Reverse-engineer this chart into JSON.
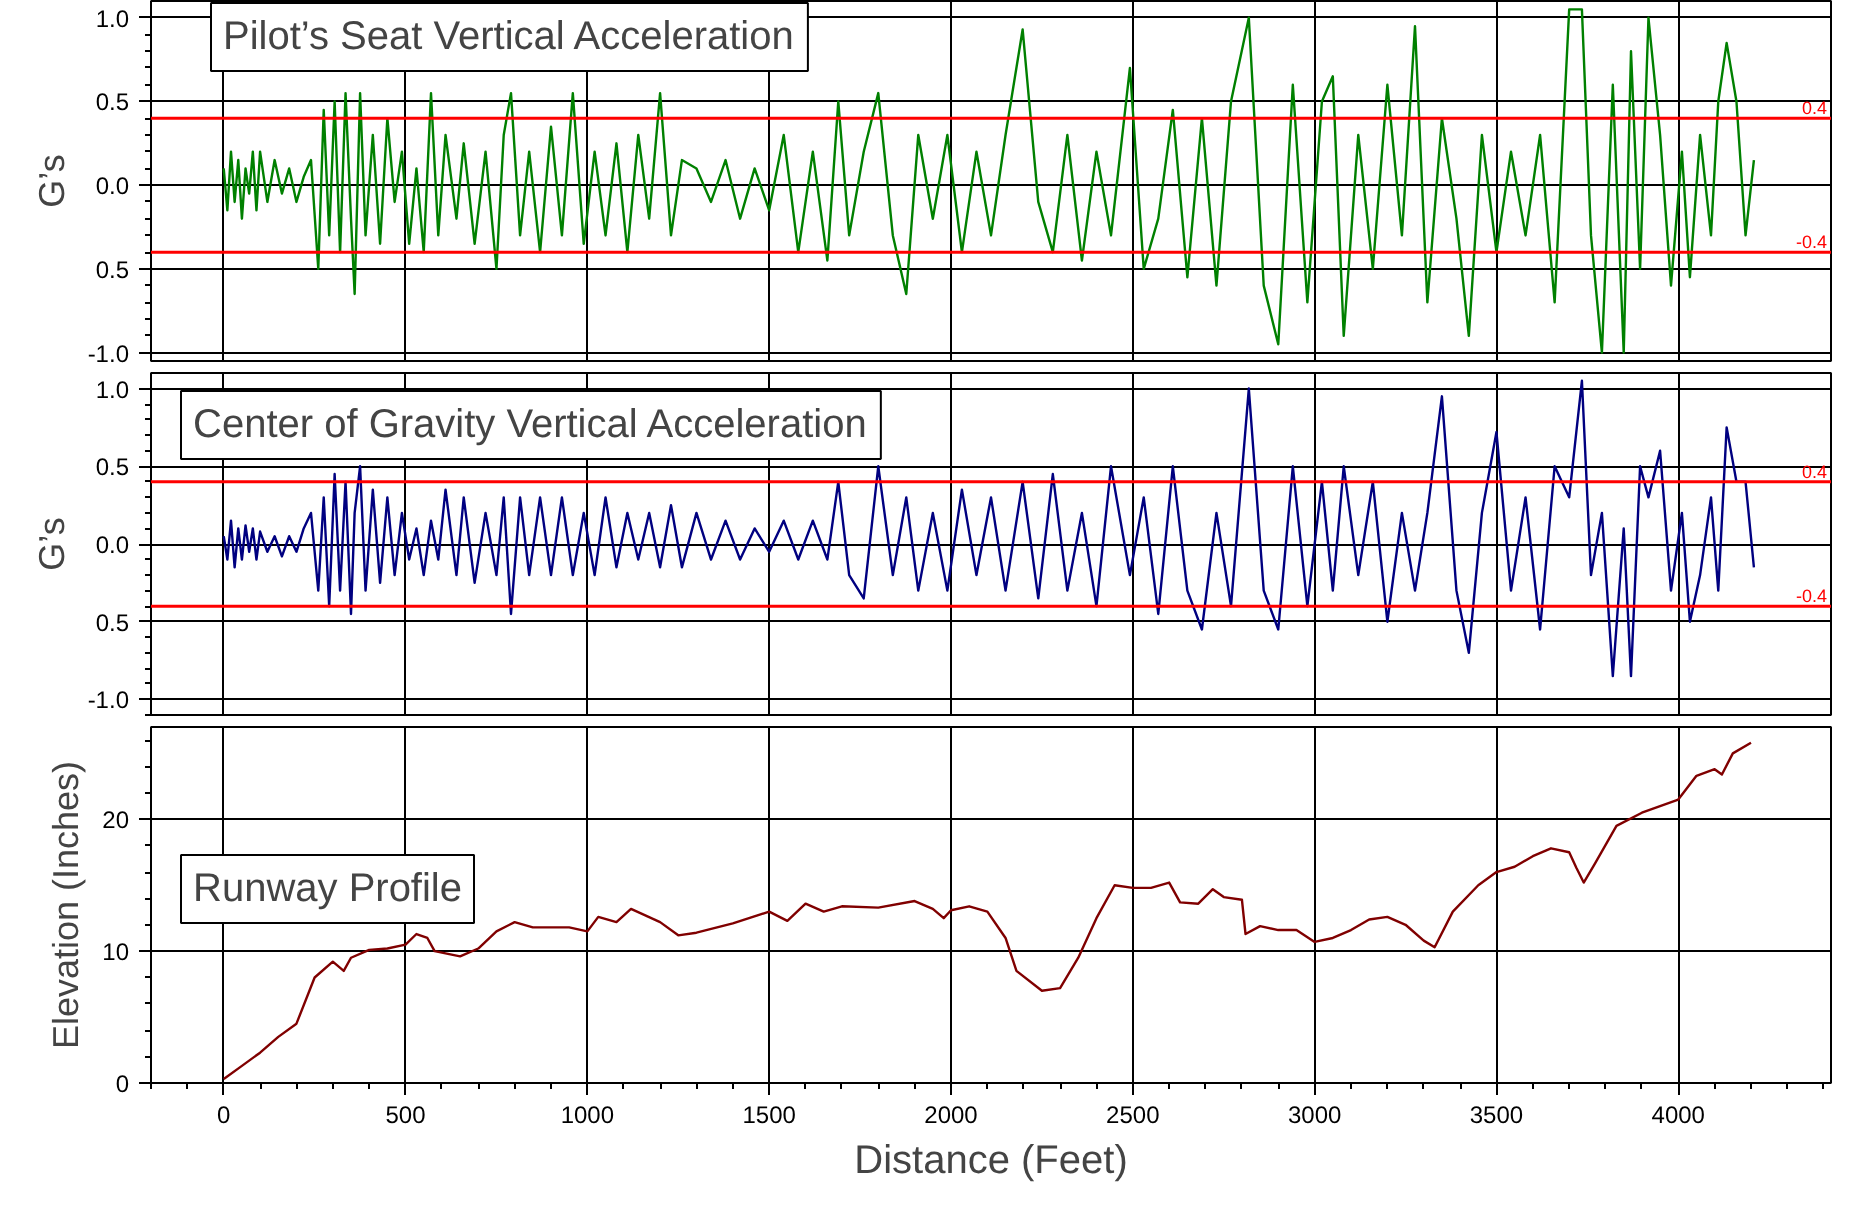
{
  "chart_data": [
    {
      "type": "line",
      "title": "Pilot’s Seat Vertical Acceleration",
      "ylabel": "G’s",
      "tick_labels": "y",
      "grid": true,
      "x": [
        0,
        10,
        20,
        30,
        40,
        50,
        60,
        70,
        80,
        90,
        100,
        120,
        140,
        160,
        180,
        200,
        220,
        240,
        260,
        275,
        290,
        305,
        320,
        335,
        350,
        360,
        375,
        390,
        410,
        430,
        450,
        470,
        490,
        510,
        530,
        550,
        570,
        590,
        610,
        640,
        660,
        690,
        720,
        750,
        770,
        790,
        815,
        840,
        870,
        900,
        930,
        960,
        990,
        1020,
        1050,
        1080,
        1110,
        1140,
        1170,
        1200,
        1230,
        1260,
        1300,
        1340,
        1380,
        1420,
        1460,
        1500,
        1540,
        1580,
        1620,
        1660,
        1690,
        1720,
        1760,
        1800,
        1840,
        1877,
        1910,
        1950,
        1990,
        2030,
        2070,
        2110,
        2150,
        2197,
        2240,
        2280,
        2320,
        2360,
        2400,
        2440,
        2492,
        2530,
        2570,
        2610,
        2650,
        2690,
        2730,
        2770,
        2819,
        2860,
        2900,
        2940,
        2980,
        3020,
        3050,
        3080,
        3120,
        3160,
        3200,
        3240,
        3276,
        3310,
        3350,
        3390,
        3424,
        3460,
        3500,
        3540,
        3580,
        3620,
        3660,
        3700,
        3735,
        3760,
        3790,
        3820,
        3850,
        3870,
        3895,
        3918,
        3950,
        3980,
        4010,
        4032,
        4060,
        4090,
        4110,
        4133,
        4160,
        4185,
        4208
      ],
      "series": [
        {
          "color": "#008000",
          "values": [
            0.1,
            -0.15,
            0.2,
            -0.1,
            0.15,
            -0.2,
            0.1,
            -0.05,
            0.2,
            -0.15,
            0.2,
            -0.1,
            0.15,
            -0.05,
            0.1,
            -0.1,
            0.05,
            0.15,
            -0.5,
            0.45,
            -0.3,
            0.5,
            -0.4,
            0.55,
            -0.2,
            -0.65,
            0.55,
            -0.3,
            0.3,
            -0.35,
            0.4,
            -0.1,
            0.2,
            -0.35,
            0.1,
            -0.4,
            0.55,
            -0.3,
            0.3,
            -0.2,
            0.25,
            -0.35,
            0.2,
            -0.5,
            0.3,
            0.55,
            -0.3,
            0.2,
            -0.4,
            0.35,
            -0.3,
            0.55,
            -0.35,
            0.2,
            -0.3,
            0.25,
            -0.4,
            0.3,
            -0.2,
            0.55,
            -0.3,
            0.15,
            0.1,
            -0.1,
            0.15,
            -0.2,
            0.1,
            -0.15,
            0.3,
            -0.4,
            0.2,
            -0.45,
            0.5,
            -0.3,
            0.2,
            0.55,
            -0.3,
            -0.65,
            0.3,
            -0.2,
            0.3,
            -0.4,
            0.2,
            -0.3,
            0.3,
            0.93,
            -0.1,
            -0.4,
            0.3,
            -0.45,
            0.2,
            -0.3,
            0.7,
            -0.5,
            -0.2,
            0.45,
            -0.55,
            0.4,
            -0.6,
            0.5,
            1.0,
            -0.6,
            -0.95,
            0.6,
            -0.7,
            0.5,
            0.65,
            -0.9,
            0.3,
            -0.5,
            0.6,
            -0.3,
            0.95,
            -0.7,
            0.4,
            -0.2,
            -0.9,
            0.3,
            -0.4,
            0.2,
            -0.3,
            0.3,
            -0.7,
            1.05,
            1.05,
            -0.3,
            -1.0,
            0.6,
            -1.0,
            0.8,
            -0.5,
            1.0,
            0.3,
            -0.6,
            0.2,
            -0.55,
            0.3,
            -0.3,
            0.5,
            0.85,
            0.5,
            -0.3,
            0.15
          ]
        }
      ],
      "xlim": [
        -200,
        4420
      ],
      "xticks": [
        0,
        500,
        1000,
        1500,
        2000,
        2500,
        3000,
        3500,
        4000
      ],
      "ylim": [
        -1.05,
        1.1
      ],
      "yticks": [
        {
          "value": 1.0,
          "label": "1.0"
        },
        {
          "value": 0.5,
          "label": "0.5"
        },
        {
          "value": 0.0,
          "label": "0.0"
        },
        {
          "value": -0.5,
          "label": "0.5"
        },
        {
          "value": -1.0,
          "label": "-1.0"
        }
      ],
      "ref_lines": [
        {
          "axis": "y",
          "value": 0.4,
          "label": "0.4",
          "color": "#ff0000"
        },
        {
          "axis": "y",
          "value": -0.4,
          "label": "-0.4",
          "color": "#ff0000"
        }
      ]
    },
    {
      "type": "line",
      "title": "Center of Gravity Vertical Acceleration",
      "ylabel": "G’s",
      "tick_labels": "y",
      "grid": true,
      "x": [
        0,
        10,
        20,
        30,
        40,
        50,
        60,
        70,
        80,
        90,
        100,
        120,
        140,
        160,
        180,
        200,
        220,
        240,
        260,
        275,
        290,
        305,
        320,
        335,
        350,
        360,
        375,
        390,
        410,
        430,
        450,
        470,
        490,
        510,
        530,
        550,
        570,
        590,
        610,
        640,
        660,
        690,
        720,
        750,
        770,
        790,
        815,
        840,
        870,
        900,
        930,
        960,
        990,
        1020,
        1050,
        1080,
        1110,
        1140,
        1170,
        1200,
        1230,
        1260,
        1300,
        1340,
        1380,
        1420,
        1460,
        1500,
        1540,
        1580,
        1620,
        1660,
        1690,
        1720,
        1760,
        1800,
        1840,
        1877,
        1910,
        1950,
        1990,
        2030,
        2070,
        2110,
        2150,
        2197,
        2240,
        2280,
        2320,
        2360,
        2400,
        2440,
        2492,
        2530,
        2570,
        2610,
        2650,
        2690,
        2730,
        2770,
        2819,
        2860,
        2900,
        2940,
        2980,
        3020,
        3050,
        3080,
        3120,
        3160,
        3200,
        3240,
        3276,
        3310,
        3350,
        3390,
        3424,
        3460,
        3500,
        3540,
        3580,
        3620,
        3660,
        3700,
        3735,
        3760,
        3790,
        3820,
        3850,
        3870,
        3895,
        3918,
        3950,
        3980,
        4010,
        4032,
        4060,
        4090,
        4110,
        4133,
        4160,
        4185,
        4208
      ],
      "series": [
        {
          "color": "#000080",
          "values": [
            0.05,
            -0.1,
            0.15,
            -0.15,
            0.1,
            -0.1,
            0.12,
            -0.05,
            0.1,
            -0.1,
            0.08,
            -0.05,
            0.05,
            -0.08,
            0.05,
            -0.05,
            0.1,
            0.2,
            -0.3,
            0.3,
            -0.4,
            0.45,
            -0.3,
            0.4,
            -0.45,
            0.2,
            0.5,
            -0.3,
            0.35,
            -0.25,
            0.3,
            -0.2,
            0.2,
            -0.1,
            0.1,
            -0.2,
            0.15,
            -0.1,
            0.35,
            -0.2,
            0.3,
            -0.25,
            0.2,
            -0.2,
            0.3,
            -0.45,
            0.3,
            -0.2,
            0.3,
            -0.2,
            0.3,
            -0.2,
            0.2,
            -0.2,
            0.3,
            -0.15,
            0.2,
            -0.1,
            0.2,
            -0.15,
            0.25,
            -0.15,
            0.2,
            -0.1,
            0.15,
            -0.1,
            0.1,
            -0.05,
            0.15,
            -0.1,
            0.15,
            -0.1,
            0.4,
            -0.2,
            -0.35,
            0.5,
            -0.2,
            0.3,
            -0.3,
            0.2,
            -0.3,
            0.35,
            -0.2,
            0.3,
            -0.3,
            0.4,
            -0.35,
            0.45,
            -0.3,
            0.2,
            -0.4,
            0.5,
            -0.2,
            0.3,
            -0.45,
            0.5,
            -0.3,
            -0.55,
            0.2,
            -0.4,
            1.0,
            -0.3,
            -0.55,
            0.5,
            -0.4,
            0.4,
            -0.3,
            0.5,
            -0.2,
            0.4,
            -0.5,
            0.2,
            -0.3,
            0.2,
            0.95,
            -0.3,
            -0.7,
            0.2,
            0.72,
            -0.3,
            0.3,
            -0.55,
            0.5,
            0.3,
            1.05,
            -0.2,
            0.2,
            -0.85,
            0.1,
            -0.85,
            0.5,
            0.3,
            0.6,
            -0.3,
            0.2,
            -0.5,
            -0.2,
            0.3,
            -0.3,
            0.75,
            0.4,
            0.4,
            -0.15
          ]
        }
      ],
      "xlim": [
        -200,
        4420
      ],
      "xticks": [
        0,
        500,
        1000,
        1500,
        2000,
        2500,
        3000,
        3500,
        4000
      ],
      "ylim": [
        -1.1,
        1.1
      ],
      "yticks": [
        {
          "value": 1.0,
          "label": "1.0"
        },
        {
          "value": 0.5,
          "label": "0.5"
        },
        {
          "value": 0.0,
          "label": "0.0"
        },
        {
          "value": -0.5,
          "label": "0.5"
        },
        {
          "value": -1.0,
          "label": "-1.0"
        }
      ],
      "ref_lines": [
        {
          "axis": "y",
          "value": 0.4,
          "label": "0.4",
          "color": "#ff0000"
        },
        {
          "axis": "y",
          "value": -0.4,
          "label": "-0.4",
          "color": "#ff0000"
        }
      ]
    },
    {
      "type": "line",
      "title": "Runway Profile",
      "ylabel": "Elevation (Inches)",
      "xlabel": "Distance (Feet)",
      "grid": true,
      "x": [
        0,
        50,
        100,
        150,
        200,
        250,
        300,
        330,
        350,
        400,
        450,
        500,
        530,
        560,
        580,
        650,
        700,
        750,
        800,
        850,
        950,
        1000,
        1030,
        1080,
        1120,
        1200,
        1250,
        1300,
        1400,
        1500,
        1550,
        1600,
        1650,
        1700,
        1800,
        1900,
        1950,
        1980,
        2000,
        2050,
        2100,
        2150,
        2180,
        2250,
        2300,
        2350,
        2400,
        2450,
        2500,
        2550,
        2600,
        2630,
        2680,
        2720,
        2750,
        2800,
        2810,
        2850,
        2900,
        2950,
        3000,
        3050,
        3100,
        3150,
        3200,
        3250,
        3300,
        3330,
        3380,
        3450,
        3500,
        3550,
        3600,
        3650,
        3700,
        3720,
        3740,
        3770,
        3830,
        3900,
        3950,
        4000,
        4050,
        4100,
        4120,
        4150,
        4200
      ],
      "series": [
        {
          "color": "#800000",
          "values": [
            0.3,
            1.3,
            2.3,
            3.5,
            4.5,
            8,
            9.2,
            8.5,
            9.5,
            10.1,
            10.2,
            10.5,
            11.3,
            11,
            10,
            9.6,
            10.2,
            11.5,
            12.2,
            11.8,
            11.8,
            11.5,
            12.6,
            12.2,
            13.2,
            12.2,
            11.2,
            11.4,
            12.1,
            13,
            12.3,
            13.6,
            13,
            13.4,
            13.3,
            13.8,
            13.2,
            12.5,
            13.1,
            13.4,
            13,
            11,
            8.5,
            7,
            7.2,
            9.5,
            12.5,
            15,
            14.8,
            14.8,
            15.2,
            13.7,
            13.6,
            14.7,
            14.1,
            13.9,
            11.3,
            11.9,
            11.6,
            11.6,
            10.7,
            11,
            11.6,
            12.4,
            12.6,
            12,
            10.8,
            10.3,
            13,
            15,
            16,
            16.4,
            17.2,
            17.8,
            17.5,
            16.3,
            15.2,
            16.6,
            19.5,
            20.5,
            21,
            21.5,
            23.3,
            23.8,
            23.4,
            25,
            25.8
          ]
        }
      ],
      "xlim": [
        -200,
        4420
      ],
      "xticks": [
        0,
        500,
        1000,
        1500,
        2000,
        2500,
        3000,
        3500,
        4000
      ],
      "ylim": [
        0,
        27
      ],
      "yticks": [
        0,
        10,
        20
      ]
    }
  ]
}
